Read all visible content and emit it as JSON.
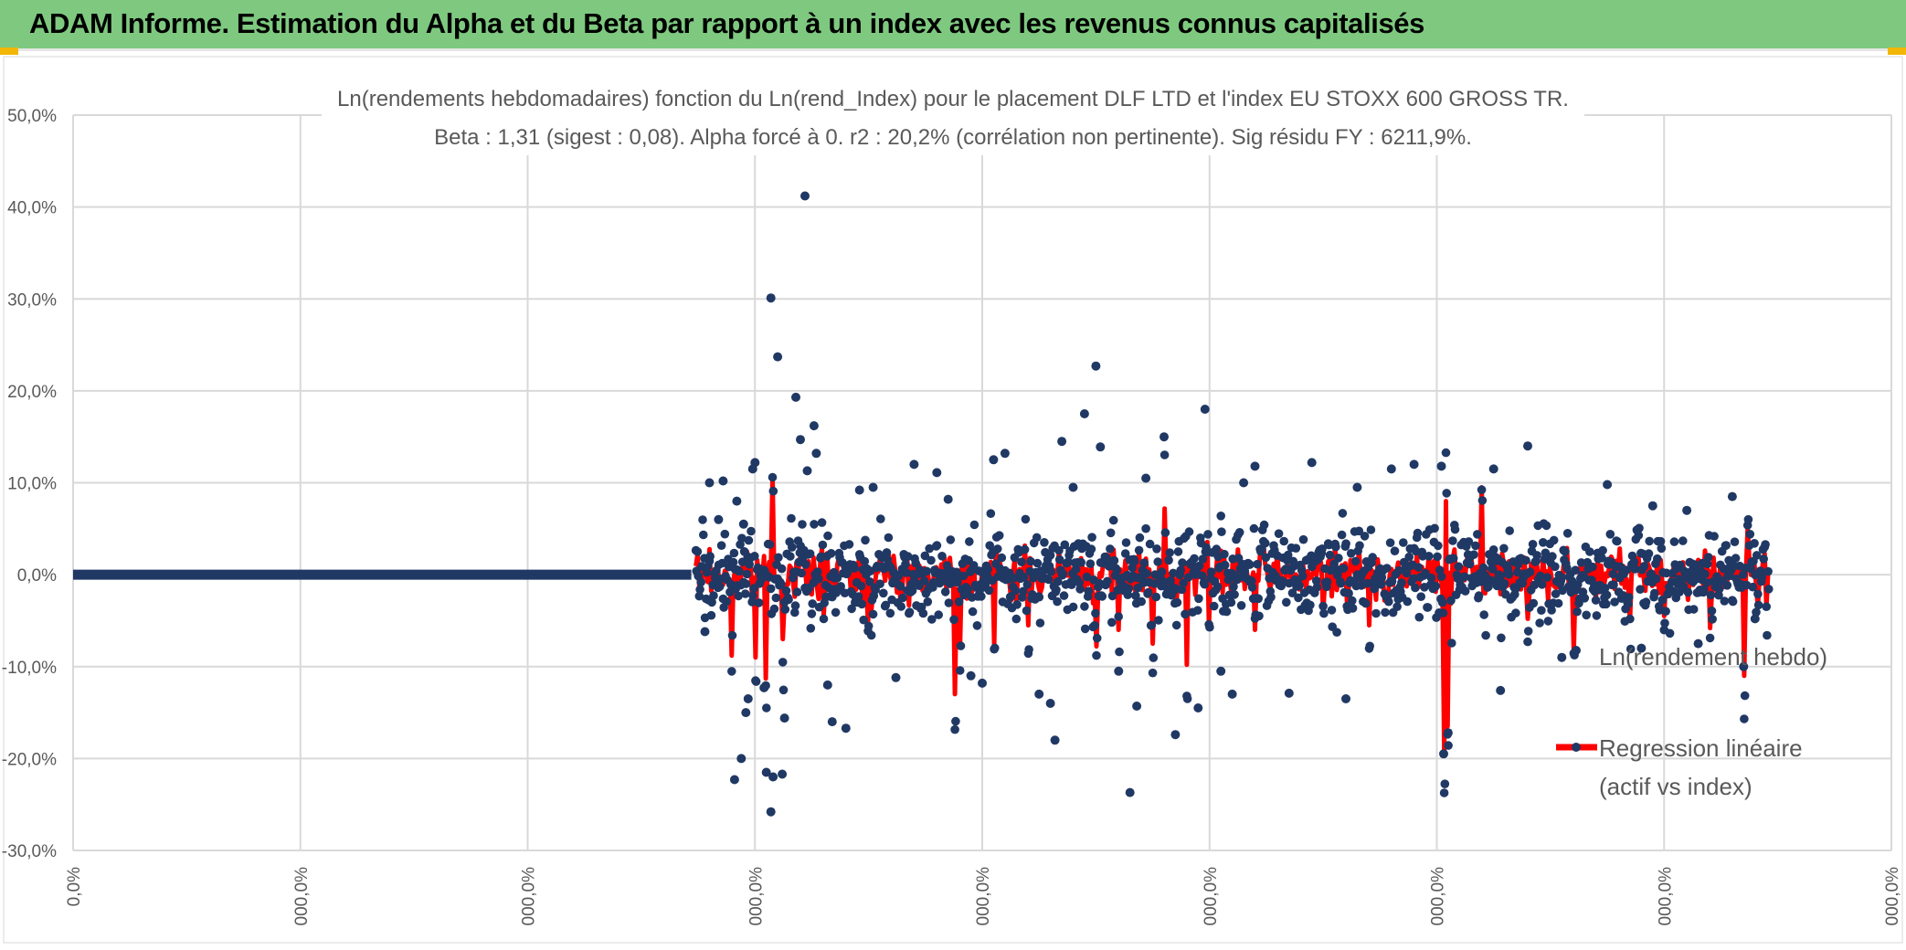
{
  "header": {
    "title": "ADAM Informe. Estimation du Alpha et du Beta par rapport à un index avec les revenus connus capitalisés"
  },
  "chart_data": {
    "type": "scatter",
    "title_line1": "Ln(rendements hebdomadaires) fonction du Ln(rend_Index) pour le placement DLF LTD et l'index EU STOXX 600 GROSS TR.",
    "title_line2": "Beta : 1,31 (sigest : 0,08). Alpha forcé à 0. r2 : 20,2% (corrélation non pertinente). Sig résidu FY : 6211,9%.",
    "y_tick_labels": [
      "50,0%",
      "40,0%",
      "30,0%",
      "20,0%",
      "10,0%",
      "0,0%",
      "-10,0%",
      "-20,0%",
      "-30,0%"
    ],
    "y_ticks": [
      50,
      40,
      30,
      20,
      10,
      0,
      -10,
      -20,
      -30
    ],
    "ylim": [
      -30,
      50
    ],
    "x_tick_labels": [
      "0,0%",
      "000,0%",
      "000,0%",
      "000,0%",
      "000,0%",
      "000,0%",
      "000,0%",
      "000,0%",
      "000,0%"
    ],
    "xlim": [
      0,
      8
    ],
    "grid": true,
    "legend": {
      "position": "right",
      "series1": "Ln(rendement hebdo)",
      "series2_line1": "Regression linéaire",
      "series2_line2": "(actif vs index)"
    },
    "series": [
      {
        "name": "Ln(rendement hebdo)",
        "kind": "points",
        "color": "#203864",
        "flat_segment": {
          "x_start": 0.0,
          "x_end": 2.72,
          "y": 0.0
        },
        "points": [
          [
            2.8,
            10.0
          ],
          [
            2.86,
            10.2
          ],
          [
            2.92,
            8.0
          ],
          [
            2.95,
            5.5
          ],
          [
            2.99,
            11.5
          ],
          [
            3.0,
            12.2
          ],
          [
            2.97,
            -13.5
          ],
          [
            2.91,
            -22.3
          ],
          [
            2.94,
            -20.0
          ],
          [
            2.96,
            -15.0
          ],
          [
            3.04,
            -12.3
          ],
          [
            3.05,
            -21.5
          ],
          [
            3.07,
            -25.8
          ],
          [
            3.08,
            -22.0
          ],
          [
            3.12,
            -21.7
          ],
          [
            3.13,
            -15.6
          ],
          [
            3.07,
            30.1
          ],
          [
            3.1,
            23.7
          ],
          [
            3.22,
            41.2
          ],
          [
            3.18,
            19.3
          ],
          [
            3.2,
            14.7
          ],
          [
            3.23,
            11.3
          ],
          [
            3.26,
            16.2
          ],
          [
            3.27,
            13.2
          ],
          [
            3.32,
            -12.0
          ],
          [
            3.34,
            -16.0
          ],
          [
            3.4,
            -16.7
          ],
          [
            3.46,
            9.2
          ],
          [
            3.52,
            9.5
          ],
          [
            3.62,
            -11.2
          ],
          [
            3.7,
            12.0
          ],
          [
            3.8,
            11.1
          ],
          [
            3.85,
            8.2
          ],
          [
            3.95,
            -11.0
          ],
          [
            4.0,
            -11.8
          ],
          [
            4.05,
            12.5
          ],
          [
            4.1,
            13.2
          ],
          [
            4.25,
            -13.0
          ],
          [
            4.3,
            -14.0
          ],
          [
            4.32,
            -18.0
          ],
          [
            4.35,
            14.5
          ],
          [
            4.4,
            9.5
          ],
          [
            4.45,
            17.5
          ],
          [
            4.5,
            22.7
          ],
          [
            4.52,
            13.9
          ],
          [
            4.6,
            -10.5
          ],
          [
            4.65,
            -23.7
          ],
          [
            4.68,
            -14.3
          ],
          [
            4.72,
            10.5
          ],
          [
            4.8,
            15.0
          ],
          [
            4.85,
            -17.4
          ],
          [
            4.98,
            18.0
          ],
          [
            4.95,
            -14.5
          ],
          [
            5.05,
            -10.5
          ],
          [
            5.1,
            -13.0
          ],
          [
            5.15,
            10.0
          ],
          [
            5.2,
            11.8
          ],
          [
            5.35,
            -12.9
          ],
          [
            5.45,
            12.2
          ],
          [
            5.6,
            -13.5
          ],
          [
            5.65,
            9.5
          ],
          [
            5.8,
            11.5
          ],
          [
            5.9,
            12.0
          ],
          [
            6.02,
            11.8
          ],
          [
            6.03,
            -19.5
          ],
          [
            6.05,
            -17.2
          ],
          [
            6.25,
            11.5
          ],
          [
            6.28,
            -12.6
          ],
          [
            6.4,
            14.0
          ],
          [
            6.55,
            -9.0
          ],
          [
            6.75,
            9.8
          ],
          [
            6.9,
            -8.0
          ],
          [
            6.95,
            7.5
          ],
          [
            7.1,
            7.0
          ],
          [
            7.15,
            -7.5
          ],
          [
            7.3,
            8.5
          ],
          [
            7.35,
            -10.0
          ],
          [
            7.4,
            -4.8
          ],
          [
            2.78,
            -6.2
          ],
          [
            2.84,
            6.0
          ]
        ]
      },
      {
        "name": "Regression linéaire (actif vs index)",
        "kind": "line",
        "color": "#ff0000",
        "spikes": [
          [
            3.05,
            -11.3
          ],
          [
            3.08,
            10.5
          ],
          [
            3.0,
            -9.0
          ],
          [
            2.9,
            -8.8
          ],
          [
            3.12,
            -7.0
          ],
          [
            3.3,
            -4.5
          ],
          [
            3.5,
            -5.2
          ],
          [
            3.88,
            -13.0
          ],
          [
            3.9,
            -7.8
          ],
          [
            4.05,
            -7.6
          ],
          [
            4.2,
            -5.5
          ],
          [
            4.5,
            -7.8
          ],
          [
            4.6,
            -6.0
          ],
          [
            4.75,
            -7.5
          ],
          [
            4.8,
            7.2
          ],
          [
            4.9,
            -9.8
          ],
          [
            5.0,
            -5.5
          ],
          [
            5.2,
            -6.0
          ],
          [
            5.5,
            -4.2
          ],
          [
            5.7,
            -5.5
          ],
          [
            6.03,
            -19.3
          ],
          [
            6.04,
            8.0
          ],
          [
            6.05,
            -16.5
          ],
          [
            6.2,
            9.5
          ],
          [
            6.4,
            -4.8
          ],
          [
            6.6,
            -8.4
          ],
          [
            6.85,
            -5.0
          ],
          [
            7.0,
            -4.5
          ],
          [
            7.2,
            -5.8
          ],
          [
            7.35,
            -11.0
          ],
          [
            7.37,
            5.0
          ],
          [
            7.45,
            -3.5
          ]
        ]
      }
    ]
  }
}
